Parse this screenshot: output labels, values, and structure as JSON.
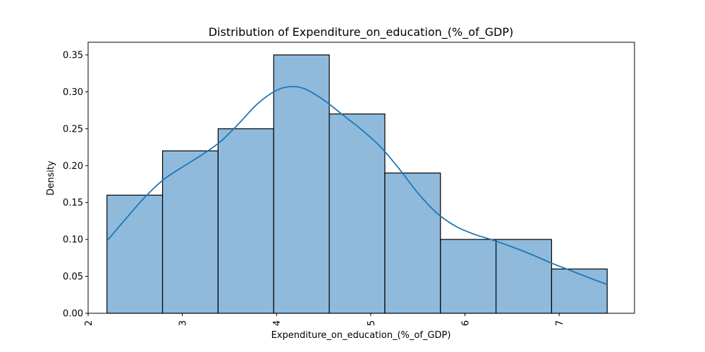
{
  "chart_data": {
    "type": "histogram",
    "title": "Distribution of Expenditure_on_education_(%_of_GDP)",
    "xlabel": "Expenditure_on_education_(%_of_GDP)",
    "ylabel": "Density",
    "xlim": [
      2.0,
      7.8
    ],
    "ylim": [
      0.0,
      0.35
    ],
    "x_ticks": [
      2,
      3,
      4,
      5,
      6,
      7
    ],
    "y_ticks": [
      "0.00",
      "0.05",
      "0.10",
      "0.15",
      "0.20",
      "0.25",
      "0.30",
      "0.35"
    ],
    "bins": [
      {
        "x0": 2.2,
        "x1": 2.79,
        "density": 0.16
      },
      {
        "x0": 2.79,
        "x1": 3.38,
        "density": 0.22
      },
      {
        "x0": 3.38,
        "x1": 3.97,
        "density": 0.25
      },
      {
        "x0": 3.97,
        "x1": 4.56,
        "density": 0.35
      },
      {
        "x0": 4.56,
        "x1": 5.15,
        "density": 0.27
      },
      {
        "x0": 5.15,
        "x1": 5.74,
        "density": 0.19
      },
      {
        "x0": 5.74,
        "x1": 6.33,
        "density": 0.1
      },
      {
        "x0": 6.33,
        "x1": 6.92,
        "density": 0.1
      },
      {
        "x0": 6.92,
        "x1": 7.51,
        "density": 0.06
      }
    ],
    "kde": [
      [
        2.2,
        0.098
      ],
      [
        2.4,
        0.128
      ],
      [
        2.6,
        0.157
      ],
      [
        2.8,
        0.181
      ],
      [
        3.0,
        0.198
      ],
      [
        3.2,
        0.214
      ],
      [
        3.4,
        0.232
      ],
      [
        3.6,
        0.257
      ],
      [
        3.8,
        0.284
      ],
      [
        4.0,
        0.302
      ],
      [
        4.15,
        0.307
      ],
      [
        4.3,
        0.304
      ],
      [
        4.5,
        0.289
      ],
      [
        4.7,
        0.269
      ],
      [
        4.9,
        0.249
      ],
      [
        5.1,
        0.226
      ],
      [
        5.3,
        0.196
      ],
      [
        5.5,
        0.163
      ],
      [
        5.7,
        0.136
      ],
      [
        5.9,
        0.118
      ],
      [
        6.1,
        0.107
      ],
      [
        6.3,
        0.099
      ],
      [
        6.5,
        0.09
      ],
      [
        6.7,
        0.08
      ],
      [
        6.9,
        0.069
      ],
      [
        7.1,
        0.059
      ],
      [
        7.3,
        0.049
      ],
      [
        7.51,
        0.039
      ]
    ],
    "grid": false,
    "bar_color": "#8fbadc",
    "bar_edge_color": "#000000",
    "kde_color": "#1f77b4"
  }
}
